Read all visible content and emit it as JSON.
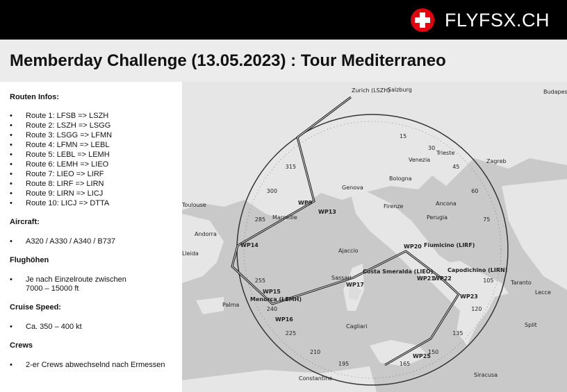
{
  "header": {
    "brand": "FLYFSX.CH",
    "title": "Memberday Challenge (13.05.2023) : Tour Mediterraneo"
  },
  "sections": [
    {
      "heading": "Routen Infos:",
      "items": [
        "Route 1: LFSB => LSZH",
        "Route 2: LSZH => LSGG",
        "Route 3: LSGG => LFMN",
        "Route 4: LFMN => LEBL",
        "Route 5: LEBL => LEMH",
        "Route 6: LEMH => LIEO",
        "Route 7: LIEO => LIRF",
        "Route 8: LIRF => LIRN",
        "Route 9: LIRN => LICJ",
        "Route 10: LICJ => DTTA"
      ]
    },
    {
      "heading": "Aircraft:",
      "items": [
        "A320 / A330 / A340 / B737"
      ]
    },
    {
      "heading": "Flughöhen",
      "items": [
        "Je nach Einzelroute zwischen\n7000 – 15000 ft"
      ]
    },
    {
      "heading": "Cruise Speed:",
      "items": [
        "Ca. 350 – 400 kt"
      ]
    },
    {
      "heading": "Crews",
      "items": [
        "2-er Crews abwechselnd nach Ermessen"
      ]
    }
  ],
  "map": {
    "places": [
      "Zurich (LSZH)",
      "Salzburg",
      "Budapest",
      "Zagreb",
      "Trieste",
      "Venezia",
      "Bologna",
      "Genova",
      "Firenze",
      "Perugia",
      "Marseille",
      "Toulouse",
      "Andorra",
      "Lleida",
      "Ajaccio",
      "Sassari",
      "Cagliari",
      "Palma",
      "Menorca (LEMH)",
      "Costa Smeralda (LIEO)",
      "Fiumicino (LIRF)",
      "Capodichino (LIRN)",
      "Constantine",
      "Siracusa",
      "Taranto",
      "Lecce",
      "Split",
      "Ancona"
    ],
    "waypoints": [
      "WP9",
      "WP13",
      "WP14",
      "WP15",
      "WP16",
      "WP17",
      "WP20",
      "WP21",
      "WP22",
      "WP23",
      "WP25"
    ],
    "bearings": [
      "15",
      "30",
      "45",
      "60",
      "75",
      "105",
      "120",
      "135",
      "150",
      "165",
      "195",
      "210",
      "225",
      "240",
      "255",
      "285",
      "300",
      "315"
    ]
  }
}
